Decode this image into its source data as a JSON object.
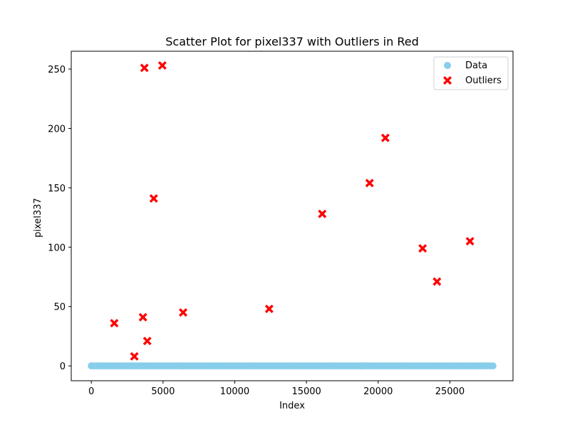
{
  "chart_data": {
    "type": "scatter",
    "title": "Scatter Plot for pixel337 with Outliers in Red",
    "xlabel": "Index",
    "ylabel": "pixel337",
    "xlim": [
      -1400,
      29400
    ],
    "ylim": [
      -12.5,
      265
    ],
    "x_ticks": [
      0,
      5000,
      10000,
      15000,
      20000,
      25000
    ],
    "y_ticks": [
      0,
      50,
      100,
      150,
      200,
      250
    ],
    "grid": false,
    "legend_position": "top-right",
    "series": [
      {
        "name": "Data",
        "color": "#87ceeb",
        "marker": "circle",
        "x_range": [
          0,
          28000
        ],
        "y_value": 0
      },
      {
        "name": "Outliers",
        "color": "#ff0000",
        "marker": "x-filled",
        "points": [
          {
            "x": 1600,
            "y": 36
          },
          {
            "x": 3000,
            "y": 8
          },
          {
            "x": 3600,
            "y": 41
          },
          {
            "x": 3700,
            "y": 251
          },
          {
            "x": 3900,
            "y": 21
          },
          {
            "x": 4350,
            "y": 141
          },
          {
            "x": 4950,
            "y": 253
          },
          {
            "x": 6400,
            "y": 45
          },
          {
            "x": 12400,
            "y": 48
          },
          {
            "x": 16100,
            "y": 128
          },
          {
            "x": 19400,
            "y": 154
          },
          {
            "x": 20500,
            "y": 192
          },
          {
            "x": 23100,
            "y": 99
          },
          {
            "x": 24100,
            "y": 71
          },
          {
            "x": 26400,
            "y": 105
          }
        ]
      }
    ]
  }
}
